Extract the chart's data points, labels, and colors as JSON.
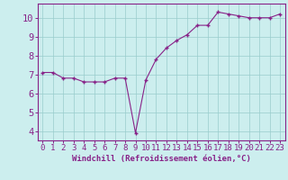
{
  "x": [
    0,
    1,
    2,
    3,
    4,
    5,
    6,
    7,
    8,
    9,
    10,
    11,
    12,
    13,
    14,
    15,
    16,
    17,
    18,
    19,
    20,
    21,
    22,
    23
  ],
  "y": [
    7.1,
    7.1,
    6.8,
    6.8,
    6.6,
    6.6,
    6.6,
    6.8,
    6.8,
    3.9,
    6.7,
    7.8,
    8.4,
    8.8,
    9.1,
    9.6,
    9.6,
    10.3,
    10.2,
    10.1,
    10.0,
    10.0,
    10.0,
    10.2
  ],
  "line_color": "#882288",
  "marker_color": "#882288",
  "bg_color": "#cceeee",
  "grid_color": "#99cccc",
  "xlabel": "Windchill (Refroidissement éolien,°C)",
  "xlabel_color": "#882288",
  "xtick_color": "#882288",
  "ytick_color": "#882288",
  "xlim": [
    -0.5,
    23.5
  ],
  "ylim": [
    3.5,
    10.75
  ],
  "yticks": [
    4,
    5,
    6,
    7,
    8,
    9,
    10
  ],
  "xticks": [
    0,
    1,
    2,
    3,
    4,
    5,
    6,
    7,
    8,
    9,
    10,
    11,
    12,
    13,
    14,
    15,
    16,
    17,
    18,
    19,
    20,
    21,
    22,
    23
  ],
  "spine_color": "#882288",
  "font_family": "monospace",
  "xlabel_fontsize": 6.5,
  "tick_fontsize": 6.5,
  "ytick_fontsize": 7.5
}
